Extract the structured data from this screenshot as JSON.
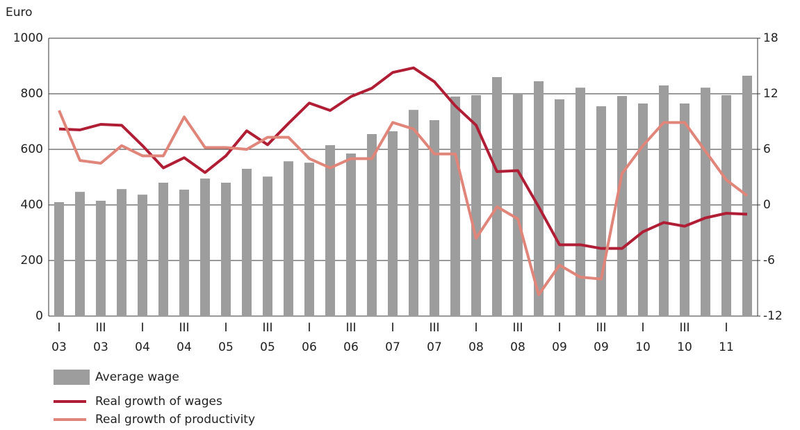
{
  "chart_data": {
    "type": "bar-line",
    "y_axis_label": "Euro",
    "categories": [
      "I",
      null,
      "III",
      null,
      "I",
      null,
      "III",
      null,
      "I",
      null,
      "III",
      null,
      "I",
      null,
      "III",
      null,
      "I",
      null,
      "III",
      null,
      "I",
      null,
      "III",
      null,
      "I",
      null,
      "III",
      null,
      "I",
      null,
      "III",
      null,
      "I",
      null
    ],
    "category_years": [
      "03",
      null,
      "03",
      null,
      "04",
      null,
      "04",
      null,
      "05",
      null,
      "05",
      null,
      "06",
      null,
      "06",
      null,
      "07",
      null,
      "07",
      null,
      "08",
      null,
      "08",
      null,
      "09",
      null,
      "09",
      null,
      "10",
      null,
      "10",
      null,
      "11",
      null
    ],
    "series": [
      {
        "name": "Average wage",
        "kind": "bar",
        "color": "#9d9d9d",
        "values": [
          410,
          447,
          415,
          457,
          437,
          480,
          455,
          495,
          480,
          530,
          502,
          557,
          552,
          615,
          585,
          655,
          665,
          742,
          705,
          790,
          795,
          860,
          800,
          845,
          780,
          822,
          755,
          792,
          765,
          830,
          765,
          822,
          795,
          865
        ]
      },
      {
        "name": "Real growth of wages",
        "kind": "line",
        "axis": "y2",
        "color": "#b01e35",
        "values": [
          8.2,
          8.1,
          8.7,
          8.6,
          6.4,
          4.0,
          5.1,
          3.5,
          5.3,
          8.0,
          6.5,
          8.8,
          11.0,
          10.2,
          11.7,
          12.6,
          14.3,
          14.8,
          13.3,
          10.7,
          8.6,
          3.6,
          3.7,
          -0.2,
          -4.3,
          -4.3,
          -4.7,
          -4.7,
          -2.9,
          -1.9,
          -2.3,
          -1.4,
          -0.9,
          -1.0
        ]
      },
      {
        "name": "Real growth of productivity",
        "kind": "line",
        "axis": "y2",
        "color": "#e0857a",
        "values": [
          10.2,
          4.8,
          4.5,
          6.4,
          5.3,
          5.3,
          9.5,
          6.2,
          6.2,
          6.0,
          7.3,
          7.3,
          5.0,
          4.0,
          5.0,
          5.0,
          8.9,
          8.2,
          5.5,
          5.5,
          -3.6,
          -0.2,
          -1.5,
          -9.7,
          -6.5,
          -7.8,
          -8.0,
          3.4,
          6.4,
          8.9,
          8.9,
          5.8,
          2.7,
          1.0
        ]
      }
    ],
    "ylim": [
      0,
      1000
    ],
    "yticks": [
      0,
      200,
      400,
      600,
      800,
      1000
    ],
    "y2lim": [
      -12,
      18
    ],
    "y2ticks": [
      -12,
      -6,
      0,
      6,
      12,
      18
    ],
    "grid": true
  }
}
